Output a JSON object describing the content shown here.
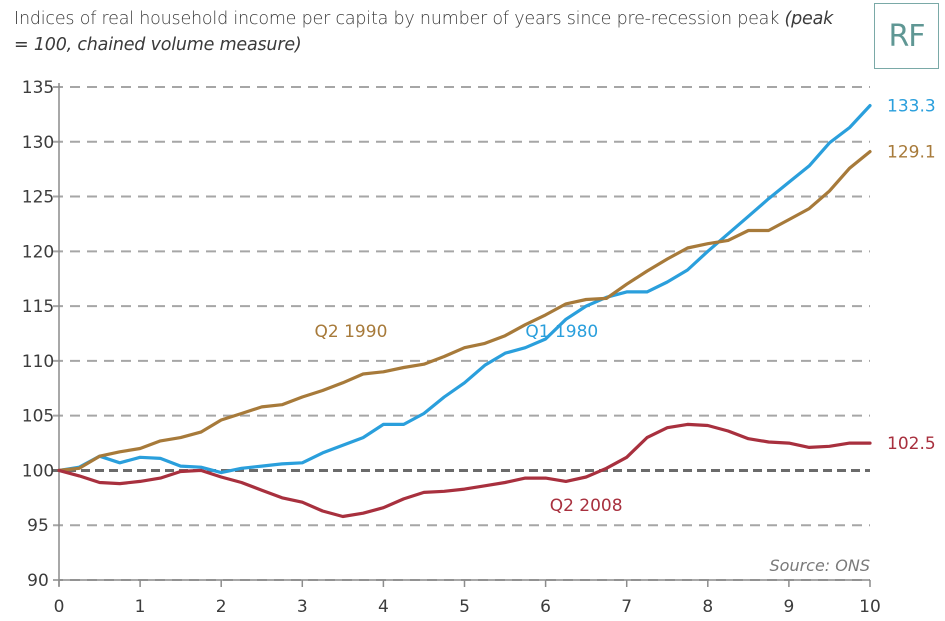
{
  "header": {
    "title_main": "Indices of real household income per capita by number of years since pre-recession peak",
    "title_sub": "(peak = 100, chained volume measure)",
    "logo_text": "RF"
  },
  "chart_data": {
    "type": "line",
    "title": "Indices of real household income per capita by number of years since pre-recession peak (peak = 100, chained volume measure)",
    "xlabel": "",
    "ylabel": "",
    "xlim": [
      0,
      10
    ],
    "ylim": [
      90,
      135
    ],
    "x_ticks": [
      0,
      1,
      2,
      3,
      4,
      5,
      6,
      7,
      8,
      9,
      10
    ],
    "y_ticks": [
      90,
      95,
      100,
      105,
      110,
      115,
      120,
      125,
      130,
      135
    ],
    "grid": "horizontal dashed",
    "reference_line": 100,
    "source": "Source: ONS",
    "x": [
      0,
      0.25,
      0.5,
      0.75,
      1,
      1.25,
      1.5,
      1.75,
      2,
      2.25,
      2.5,
      2.75,
      3,
      3.25,
      3.5,
      3.75,
      4,
      4.25,
      4.5,
      4.75,
      5,
      5.25,
      5.5,
      5.75,
      6,
      6.25,
      6.5,
      6.75,
      7,
      7.25,
      7.5,
      7.75,
      8,
      8.25,
      8.5,
      8.75,
      9,
      9.25,
      9.5,
      9.75,
      10
    ],
    "series": [
      {
        "name": "Q1 1980",
        "color": "#2a9fdc",
        "end_label": "133.3",
        "values": [
          100,
          100.3,
          101.3,
          100.7,
          101.2,
          101.1,
          100.4,
          100.3,
          99.8,
          100.2,
          100.4,
          100.6,
          100.7,
          101.6,
          102.3,
          103.0,
          104.2,
          104.2,
          105.2,
          106.7,
          108.0,
          109.6,
          110.7,
          111.2,
          112.0,
          113.8,
          115.0,
          115.8,
          116.3,
          116.3,
          117.2,
          118.3,
          120.0,
          121.6,
          123.2,
          124.8,
          126.3,
          127.8,
          129.9,
          131.3,
          133.3
        ]
      },
      {
        "name": "Q2 1990",
        "color": "#a77a3a",
        "end_label": "129.1",
        "values": [
          100,
          100.2,
          101.3,
          101.7,
          102.0,
          102.7,
          103.0,
          103.5,
          104.6,
          105.2,
          105.8,
          106.0,
          106.7,
          107.3,
          108.0,
          108.8,
          109.0,
          109.4,
          109.7,
          110.4,
          111.2,
          111.6,
          112.3,
          113.3,
          114.2,
          115.2,
          115.6,
          115.7,
          117.0,
          118.2,
          119.3,
          120.3,
          120.7,
          121.0,
          121.9,
          121.9,
          122.9,
          123.9,
          125.5,
          127.6,
          129.1
        ]
      },
      {
        "name": "Q2 2008",
        "color": "#a8303e",
        "end_label": "102.5",
        "values": [
          100,
          99.5,
          98.9,
          98.8,
          99.0,
          99.3,
          99.9,
          100.0,
          99.4,
          98.9,
          98.2,
          97.5,
          97.1,
          96.3,
          95.8,
          96.1,
          96.6,
          97.4,
          98.0,
          98.1,
          98.3,
          98.6,
          98.9,
          99.3,
          99.3,
          99.0,
          99.4,
          100.2,
          101.2,
          103.0,
          103.9,
          104.2,
          104.1,
          103.6,
          102.9,
          102.6,
          102.5,
          102.1,
          102.2,
          102.5,
          102.5
        ]
      }
    ],
    "annotations": [
      {
        "text": "Q2 1990",
        "series": "Q2 1990",
        "x": 3.6,
        "y": 112.2
      },
      {
        "text": "Q1 1980",
        "series": "Q1 1980",
        "x": 6.2,
        "y": 112.2
      },
      {
        "text": "Q2 2008",
        "series": "Q2 2008",
        "x": 6.5,
        "y": 96.3
      }
    ]
  }
}
